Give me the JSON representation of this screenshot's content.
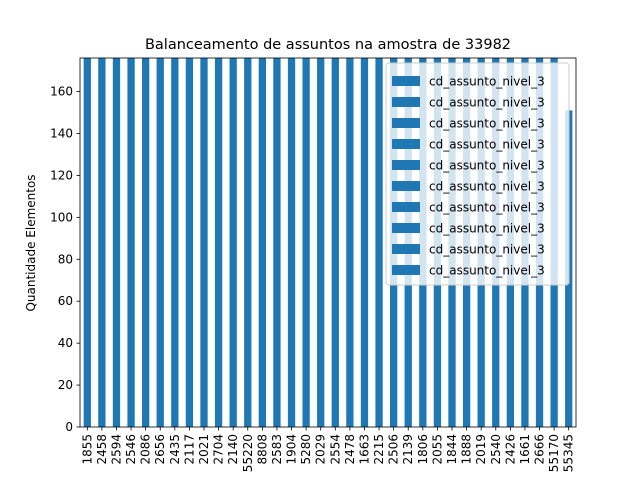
{
  "chart_data": {
    "type": "bar",
    "title": "Balanceamento de assuntos na amostra de 33982",
    "xlabel": "",
    "ylabel": "Quantidade Elementos",
    "ylim": [
      0,
      176
    ],
    "yticks": [
      0,
      20,
      40,
      60,
      80,
      100,
      120,
      140,
      160
    ],
    "grid": false,
    "legend_position": "top-right",
    "bar_color": "#1f77b4",
    "categories": [
      "1855",
      "2458",
      "2594",
      "2546",
      "2086",
      "2656",
      "2435",
      "2117",
      "2021",
      "2704",
      "2140",
      "55220",
      "8808",
      "2583",
      "1904",
      "5280",
      "2029",
      "2554",
      "2478",
      "1663",
      "2215",
      "2506",
      "2139",
      "1806",
      "2055",
      "1844",
      "1888",
      "2019",
      "2540",
      "2426",
      "1661",
      "2666",
      "55170",
      "55345"
    ],
    "values": [
      176,
      176,
      176,
      176,
      176,
      176,
      176,
      176,
      176,
      176,
      176,
      176,
      176,
      176,
      176,
      176,
      176,
      176,
      176,
      176,
      176,
      176,
      176,
      176,
      176,
      176,
      176,
      176,
      176,
      176,
      176,
      176,
      176,
      151
    ],
    "legend": [
      "cd_assunto_nivel_3",
      "cd_assunto_nivel_3",
      "cd_assunto_nivel_3",
      "cd_assunto_nivel_3",
      "cd_assunto_nivel_3",
      "cd_assunto_nivel_3",
      "cd_assunto_nivel_3",
      "cd_assunto_nivel_3",
      "cd_assunto_nivel_3",
      "cd_assunto_nivel_3"
    ]
  }
}
